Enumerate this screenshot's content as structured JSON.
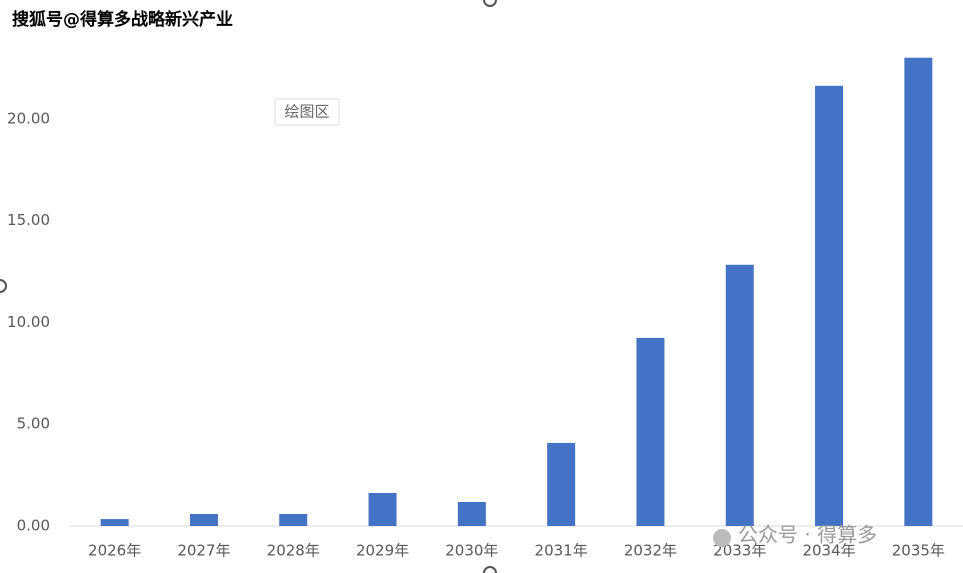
{
  "chart_data": {
    "type": "bar",
    "categories": [
      "2026年",
      "2027年",
      "2028年",
      "2029年",
      "2030年",
      "2031年",
      "2032年",
      "2033年",
      "2034年",
      "2035年"
    ],
    "values": [
      0.34,
      0.59,
      0.59,
      1.62,
      1.18,
      4.08,
      9.24,
      12.83,
      21.62,
      23.0
    ],
    "color": "#4472c4",
    "ylim": [
      0,
      25
    ],
    "yticks": [
      {
        "value": 0,
        "label": "0.00"
      },
      {
        "value": 5,
        "label": "5.00"
      },
      {
        "value": 10,
        "label": "10.00"
      },
      {
        "value": 15,
        "label": "15.00"
      },
      {
        "value": 20,
        "label": "20.00"
      }
    ],
    "grid": false,
    "plot_area_label": "绘图区",
    "watermarks": [
      "搜狐号@得算多战略新兴产业",
      "公众号 · 得算多"
    ]
  }
}
